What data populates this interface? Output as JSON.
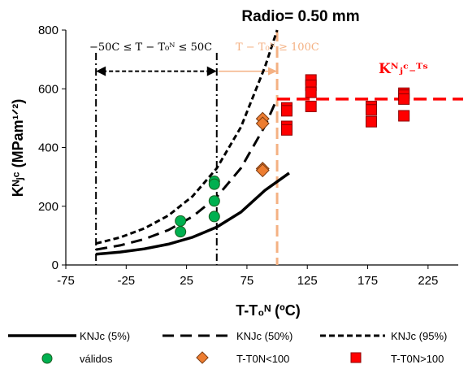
{
  "chart_data": {
    "type": "scatter",
    "title": "Radio= 0.50 mm",
    "xlabel": "T-T₀ᴺ (ºC)",
    "ylabel": "Kᴺⱼᶜ (MPam¹ᐟ²)",
    "xlim": [
      -75,
      250
    ],
    "ylim": [
      0,
      800
    ],
    "x_ticks": [
      -75,
      -25,
      25,
      75,
      125,
      175,
      225
    ],
    "y_ticks": [
      0,
      200,
      400,
      600,
      800
    ],
    "grid": false,
    "legend_position": "bottom",
    "curves": [
      {
        "name": "KNJc (5%)",
        "style": "solid",
        "x": [
          -50,
          -30,
          -10,
          10,
          30,
          50,
          70,
          90,
          110
        ],
        "y": [
          36.5,
          44.0,
          54.9,
          71.0,
          94.5,
          129.1,
          179.9,
          254.3,
          313.0
        ]
      },
      {
        "name": "KNJc (50%)",
        "style": "dashed",
        "x": [
          -50,
          -30,
          -10,
          10,
          30,
          50,
          70,
          90,
          100
        ],
        "y": [
          52.2,
          66.7,
          87.9,
          119.0,
          164.6,
          231.6,
          329.8,
          473.8,
          567.0
        ]
      },
      {
        "name": "KNJc (95%)",
        "style": "dotted",
        "x": [
          -50,
          -30,
          -10,
          10,
          30,
          50,
          70,
          90,
          100
        ],
        "y": [
          73.2,
          93.9,
          124.2,
          168.7,
          233.8,
          329.4,
          469.6,
          675.1,
          800.0
        ]
      }
    ],
    "series": [
      {
        "name": "válidos",
        "marker": "circle",
        "color": "#00B050",
        "x": [
          20,
          20,
          48,
          48,
          48,
          48
        ],
        "y": [
          150,
          113,
          285,
          275,
          218,
          165
        ]
      },
      {
        "name": "T-T0N<100",
        "marker": "diamond",
        "color": "#ED7D31",
        "x": [
          88,
          88,
          88,
          88
        ],
        "y": [
          498,
          482,
          328,
          322
        ]
      },
      {
        "name": "T-T0N>100",
        "marker": "square",
        "color": "#FF0000",
        "x": [
          108,
          108,
          108,
          108,
          128,
          128,
          128,
          128,
          178,
          178,
          178,
          205,
          205,
          205,
          205
        ],
        "y": [
          535,
          525,
          472,
          460,
          630,
          612,
          588,
          540,
          540,
          528,
          488,
          585,
          578,
          565,
          508
        ]
      }
    ],
    "reference_lines": {
      "vertical_dashdot_x": [
        -50,
        50
      ],
      "vertical_orange_x": 100,
      "horizontal_red_y": 565,
      "arrow_y": 660
    },
    "annotations": {
      "range_valid": "−50C ≤ T − T₀ᴺ ≤ 50C",
      "range_upper": "T − T₀ᴺ ≥ 100C",
      "kjc_us": "Kᴺⱼᶜ₋ᵁˢ"
    }
  },
  "colors": {
    "orange_line": "#F4B183",
    "red_line": "#FF0000",
    "green_marker": "#00B050",
    "orange_marker": "#ED7D31",
    "red_marker": "#FF0000"
  }
}
